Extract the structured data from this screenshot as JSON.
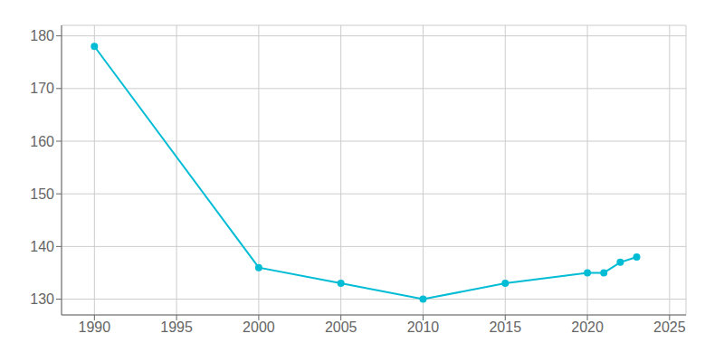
{
  "chart_data": {
    "type": "line",
    "x": [
      1990,
      2000,
      2005,
      2010,
      2015,
      2020,
      2021,
      2022,
      2023
    ],
    "values": [
      178,
      136,
      133,
      130,
      133,
      135,
      135,
      137,
      138
    ],
    "color": "#00bcd4",
    "marker": "circle",
    "xlim": [
      1988,
      2026
    ],
    "ylim": [
      127,
      182
    ],
    "xticks": [
      1990,
      1995,
      2000,
      2005,
      2010,
      2015,
      2020,
      2025
    ],
    "yticks": [
      130,
      140,
      150,
      160,
      170,
      180
    ],
    "grid": true
  }
}
